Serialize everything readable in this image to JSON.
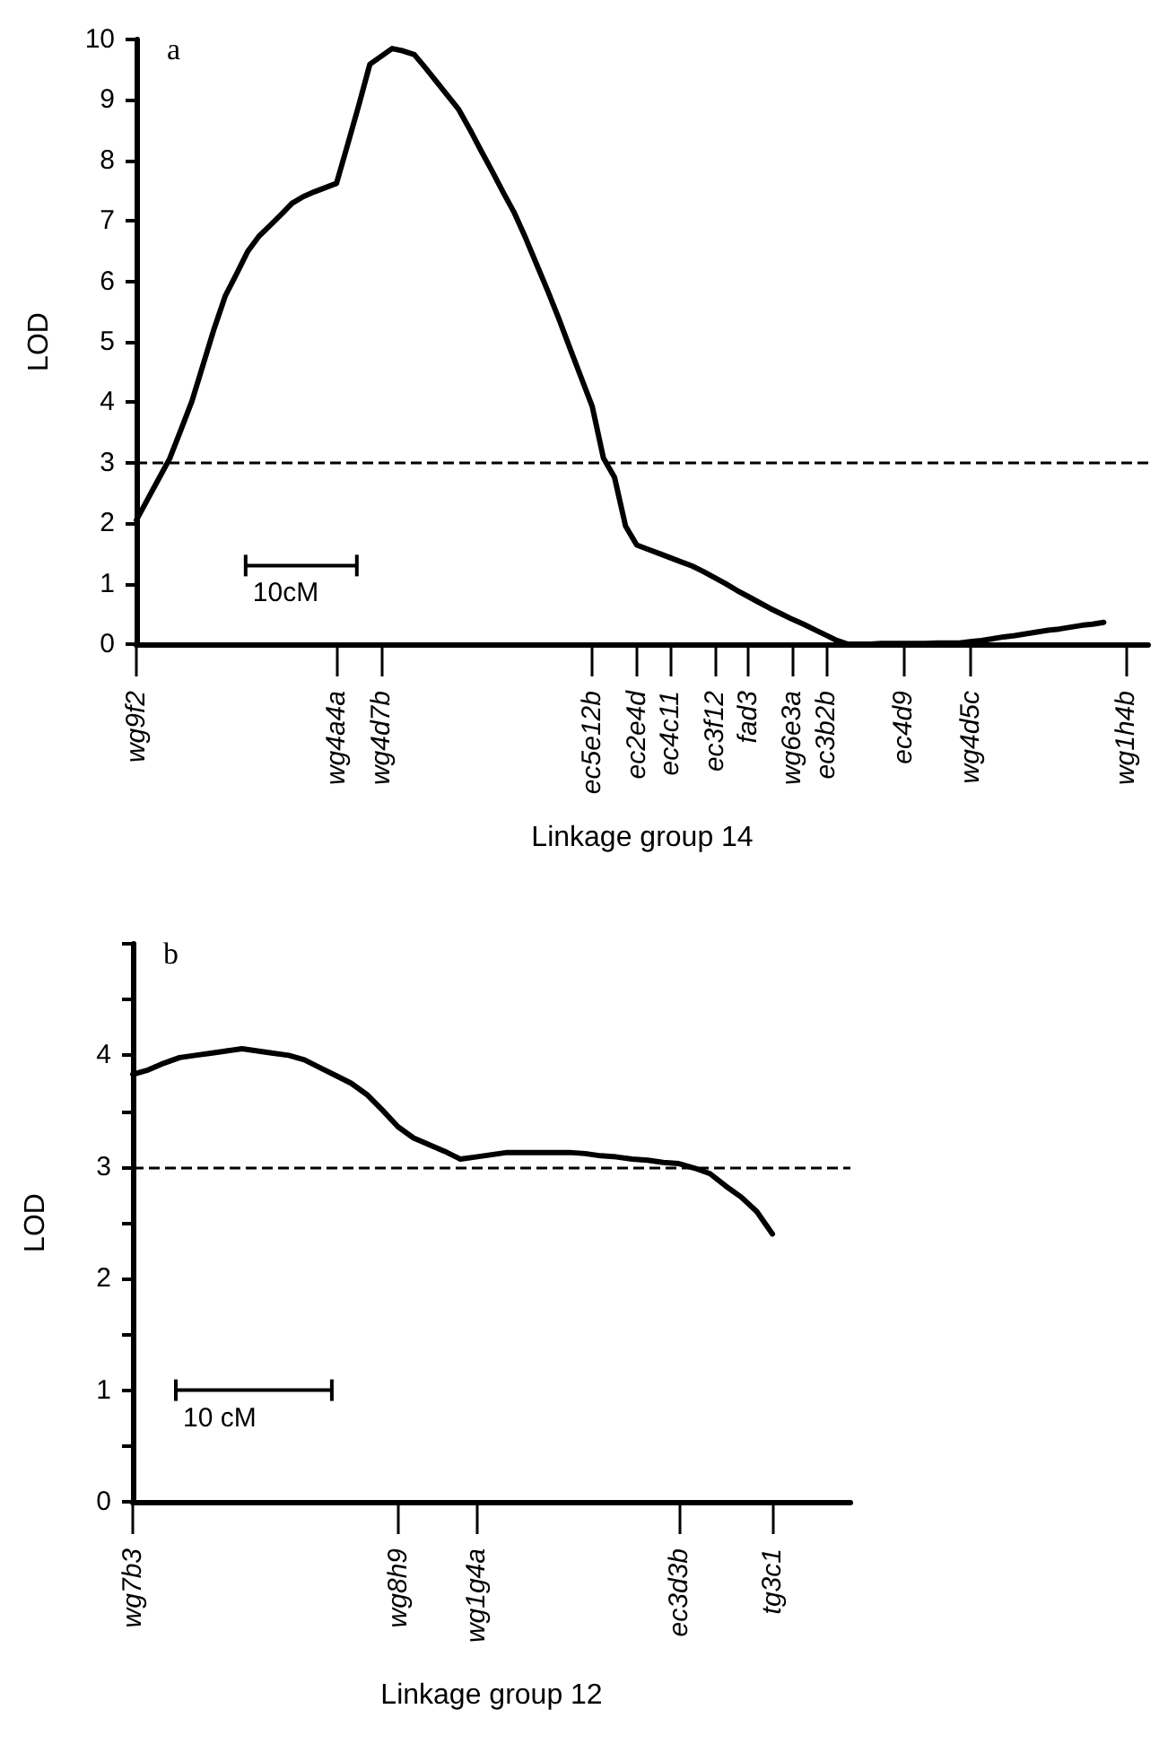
{
  "chart_data": [
    {
      "type": "line",
      "title": "a",
      "xlabel": "Linkage group 14",
      "ylabel": "LOD",
      "annotations": [
        "10cM"
      ],
      "categories": [
        "wg9f2",
        null,
        null,
        null,
        null,
        null,
        null,
        null,
        null,
        null,
        null,
        null,
        null,
        null,
        null,
        null,
        null,
        null,
        "wg4a4a",
        null,
        null,
        null,
        "wg4d7b",
        null,
        null,
        null,
        null,
        null,
        null,
        null,
        null,
        null,
        null,
        null,
        null,
        null,
        null,
        null,
        null,
        null,
        null,
        "ec5e12b",
        null,
        null,
        null,
        "ec2e4d",
        null,
        null,
        "ec4c11",
        null,
        null,
        null,
        "ec3f12",
        null,
        null,
        "fad3",
        null,
        null,
        null,
        "wg6e3a",
        null,
        null,
        "ec3b2b",
        null,
        null,
        null,
        null,
        null,
        null,
        "ec4d9",
        null,
        null,
        null,
        null,
        null,
        "wg4d5c",
        null,
        null,
        null,
        null,
        null,
        null,
        null,
        null,
        null,
        null,
        null,
        null,
        null,
        "wg1h4b",
        null,
        null
      ],
      "series": [
        {
          "color": "#000000",
          "values": [
            2.05,
            2.39,
            2.73,
            3.07,
            3.54,
            4.02,
            4.62,
            5.22,
            5.76,
            6.12,
            6.49,
            6.74,
            6.92,
            7.1,
            7.29,
            7.4,
            7.48,
            7.55,
            7.62,
            8.26,
            8.91,
            9.59,
            9.72,
            9.85,
            9.81,
            9.75,
            9.53,
            9.3,
            9.07,
            8.84,
            8.51,
            8.16,
            7.82,
            7.47,
            7.13,
            6.72,
            6.28,
            5.84,
            5.38,
            4.89,
            4.41,
            3.93,
            3.08,
            2.76,
            1.95,
            1.64,
            1.57,
            1.5,
            1.43,
            1.36,
            1.29,
            1.2,
            1.1,
            1.0,
            0.89,
            0.79,
            0.69,
            0.59,
            0.5,
            0.41,
            0.33,
            0.24,
            0.15,
            0.06,
            0,
            0,
            0,
            0.01,
            0.01,
            0.01,
            0.01,
            0.01,
            0.02,
            0.02,
            0.02,
            0.04,
            0.06,
            0.09,
            0.12,
            0.14,
            0.17,
            0.2,
            0.23,
            0.25,
            0.28,
            0.31,
            0.33,
            0.36,
            null,
            null,
            null,
            null
          ]
        }
      ],
      "ylim": [
        0,
        10
      ],
      "yticks": [
        0,
        1,
        2,
        3,
        4,
        5,
        6,
        7,
        8,
        9,
        10
      ],
      "ref_lines": [
        {
          "axis": "y",
          "value": 3,
          "line_style": "dashed"
        }
      ],
      "grid": false,
      "marker": "none",
      "line_style": "solid"
    },
    {
      "type": "line",
      "title": "b",
      "xlabel": "Linkage group 12",
      "ylabel": "LOD",
      "annotations": [
        "10 cM"
      ],
      "categories": [
        "wg7b3",
        null,
        null,
        null,
        null,
        null,
        null,
        null,
        null,
        null,
        null,
        null,
        null,
        null,
        null,
        null,
        null,
        "wg8h9",
        null,
        null,
        null,
        null,
        "wg1g4a",
        null,
        null,
        null,
        null,
        null,
        null,
        null,
        null,
        null,
        null,
        null,
        null,
        "ec3d3b",
        null,
        null,
        null,
        null,
        null,
        "tg3c1",
        null,
        null,
        null,
        null,
        null
      ],
      "series": [
        {
          "color": "#000000",
          "values": [
            3.83,
            3.87,
            3.93,
            3.98,
            4.0,
            4.02,
            4.04,
            4.06,
            4.04,
            4.02,
            4.0,
            3.96,
            3.89,
            3.82,
            3.75,
            3.65,
            3.51,
            3.36,
            3.26,
            3.2,
            3.14,
            3.07,
            3.09,
            3.11,
            3.13,
            3.13,
            3.13,
            3.13,
            3.13,
            3.12,
            3.1,
            3.09,
            3.07,
            3.06,
            3.04,
            3.03,
            2.99,
            2.94,
            2.83,
            2.73,
            2.6,
            2.4,
            null,
            null,
            null,
            null,
            null
          ]
        }
      ],
      "ylim": [
        0,
        5
      ],
      "yticks": [
        0,
        {
          "value": 0.5,
          "label": null
        },
        1,
        {
          "value": 1.5,
          "label": null
        },
        2,
        {
          "value": 2.5,
          "label": null
        },
        3,
        {
          "value": 3.5,
          "label": null
        },
        4,
        {
          "value": 4.5,
          "label": null
        },
        {
          "value": 5,
          "label": null
        }
      ],
      "ref_lines": [
        {
          "axis": "y",
          "value": 3,
          "line_style": "dashed"
        }
      ],
      "grid": false,
      "marker": "none",
      "line_style": "solid"
    }
  ]
}
